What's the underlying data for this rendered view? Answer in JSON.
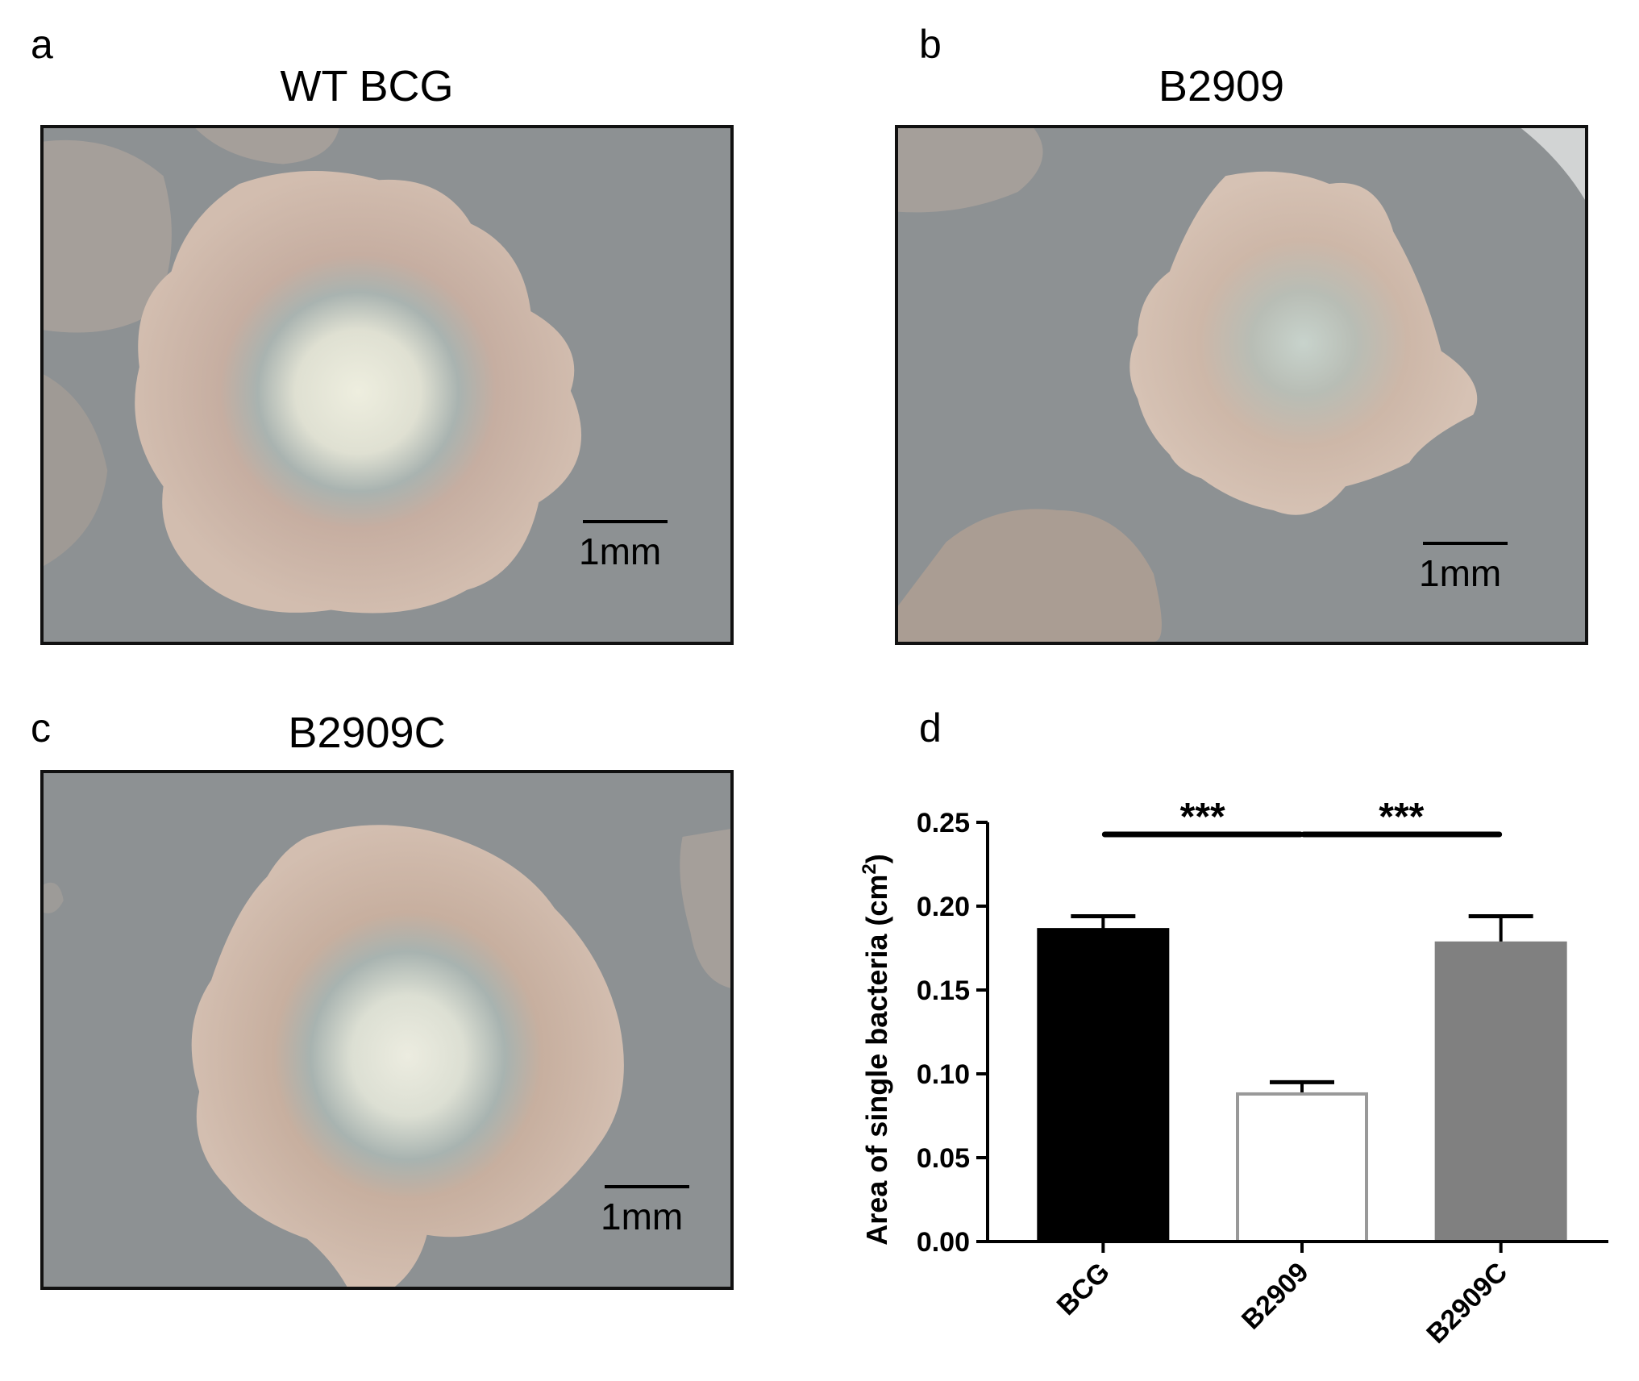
{
  "panels": {
    "a": {
      "letter": "a",
      "title": "WT BCG",
      "scale_label": "1mm"
    },
    "b": {
      "letter": "b",
      "title": "B2909",
      "scale_label": "1mm"
    },
    "c": {
      "letter": "c",
      "title": "B2909C",
      "scale_label": "1mm"
    },
    "d": {
      "letter": "d"
    }
  },
  "colors": {
    "background": "#8d9193",
    "colony": "#cdb8ab",
    "colony_center": "#e6e6d9",
    "bar_bcg": "#000000",
    "bar_b2909": "#ffffff",
    "bar_b2909c": "#808080"
  },
  "chart_data": {
    "type": "bar",
    "title": "",
    "ylabel": "Area of single bacteria (cm",
    "ylabel_superscript": "2",
    "ylabel_close": ")",
    "xlabel": "",
    "categories": [
      "BCG",
      "B2909",
      "B2909C"
    ],
    "values": [
      0.186,
      0.088,
      0.178
    ],
    "errors": [
      0.008,
      0.007,
      0.016
    ],
    "ylim": [
      0,
      0.25
    ],
    "yticks": [
      "0.00",
      "0.05",
      "0.10",
      "0.15",
      "0.20",
      "0.25"
    ],
    "bar_colors": [
      "#000000",
      "#ffffff",
      "#808080"
    ],
    "bar_edge_colors": [
      "#000000",
      "#999999",
      "#808080"
    ],
    "significance": [
      {
        "from": 0,
        "to": 1,
        "label": "***"
      },
      {
        "from": 1,
        "to": 2,
        "label": "***"
      }
    ],
    "grid": false,
    "legend": "none"
  }
}
